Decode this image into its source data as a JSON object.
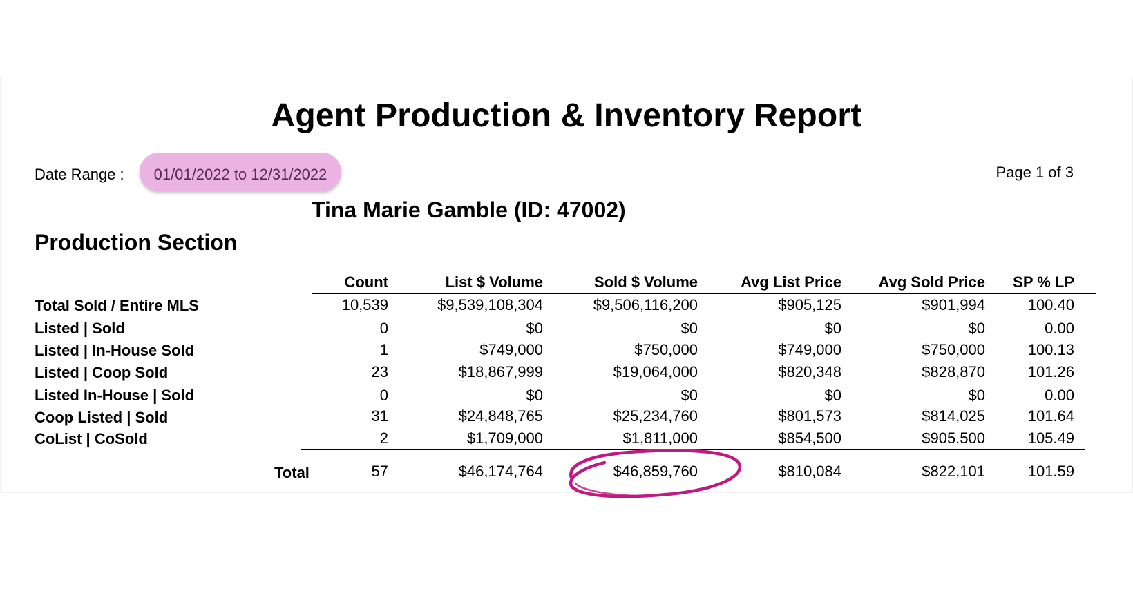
{
  "report": {
    "title": "Agent Production & Inventory Report",
    "date_range_label": "Date Range :",
    "date_range_value": "01/01/2022 to 12/31/2022",
    "page_indicator": "Page 1 of 3",
    "agent": "Tina Marie Gamble (ID: 47002)",
    "section_title": "Production Section"
  },
  "table": {
    "columns": [
      "Count",
      "List $ Volume",
      "Sold $ Volume",
      "Avg List Price",
      "Avg Sold Price",
      "SP % LP"
    ],
    "rows": [
      {
        "label": "Total Sold / Entire MLS",
        "values": [
          "10,539",
          "$9,539,108,304",
          "$9,506,116,200",
          "$905,125",
          "$901,994",
          "100.40"
        ]
      },
      {
        "label": "Listed | Sold",
        "values": [
          "0",
          "$0",
          "$0",
          "$0",
          "$0",
          "0.00"
        ]
      },
      {
        "label": "Listed | In-House Sold",
        "values": [
          "1",
          "$749,000",
          "$750,000",
          "$749,000",
          "$750,000",
          "100.13"
        ]
      },
      {
        "label": "Listed | Coop Sold",
        "values": [
          "23",
          "$18,867,999",
          "$19,064,000",
          "$820,348",
          "$828,870",
          "101.26"
        ]
      },
      {
        "label": "Listed In-House | Sold",
        "values": [
          "0",
          "$0",
          "$0",
          "$0",
          "$0",
          "0.00"
        ]
      },
      {
        "label": "Coop Listed | Sold",
        "values": [
          "31",
          "$24,848,765",
          "$25,234,760",
          "$801,573",
          "$814,025",
          "101.64"
        ]
      },
      {
        "label": "CoList | CoSold",
        "values": [
          "2",
          "$1,709,000",
          "$1,811,000",
          "$854,500",
          "$905,500",
          "105.49"
        ]
      }
    ],
    "total": {
      "label": "Total",
      "values": [
        "57",
        "$46,174,764",
        "$46,859,760",
        "$810,084",
        "$822,101",
        "101.59"
      ]
    }
  },
  "colors": {
    "highlight_pill": "#ebb3e2",
    "highlight_text": "#5a2c54",
    "circle_annotation": "#c0197f"
  }
}
